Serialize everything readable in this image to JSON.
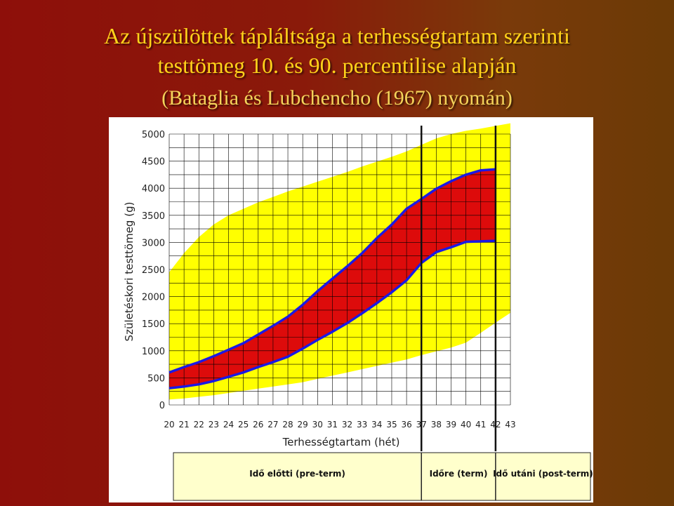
{
  "slide": {
    "title_line1": "Az újszülöttek tápláltsága a terhességtartam szerinti",
    "title_line2": "testtömeg 10. és 90. percentilise alapján",
    "subtitle": "(Bataglia és Lubchencho (1967) nyomán)"
  },
  "colors": {
    "outer_band": "#ffff00",
    "inner_band": "#dd0b0b",
    "percentile_line": "#1a1ae6",
    "grid": "#000000",
    "marker_line": "#111111"
  },
  "chart_data": {
    "type": "area",
    "xlabel": "Terhességtartam (hét)",
    "ylabel": "Születéskori testtömeg (g)",
    "x": [
      20,
      21,
      22,
      23,
      24,
      25,
      26,
      27,
      28,
      29,
      30,
      31,
      32,
      33,
      34,
      35,
      36,
      37,
      38,
      39,
      40,
      41,
      42,
      43
    ],
    "xlim": [
      20,
      43
    ],
    "ylim": [
      0,
      5000
    ],
    "yticks": [
      0,
      500,
      1000,
      1500,
      2000,
      2500,
      3000,
      3500,
      4000,
      4500,
      5000
    ],
    "grid": true,
    "series": [
      {
        "name": "",
        "role": "outer-upper",
        "x": [
          20,
          21,
          22,
          23,
          24,
          25,
          26,
          27,
          28,
          29,
          30,
          31,
          32,
          33,
          34,
          35,
          36,
          37,
          38,
          39,
          40,
          41,
          42,
          43
        ],
        "values": [
          2450,
          2800,
          3100,
          3330,
          3500,
          3620,
          3740,
          3840,
          3940,
          4030,
          4120,
          4210,
          4300,
          4400,
          4490,
          4580,
          4680,
          4800,
          4920,
          5000,
          5060,
          5100,
          5150,
          5200
        ]
      },
      {
        "name": "",
        "role": "p90",
        "x": [
          20,
          21,
          22,
          23,
          24,
          25,
          26,
          27,
          28,
          29,
          30,
          31,
          32,
          33,
          34,
          35,
          36,
          37,
          38,
          39,
          40,
          41,
          42
        ],
        "values": [
          600,
          700,
          790,
          900,
          1020,
          1140,
          1300,
          1460,
          1630,
          1850,
          2100,
          2330,
          2560,
          2800,
          3080,
          3330,
          3620,
          3800,
          3990,
          4130,
          4250,
          4330,
          4350
        ]
      },
      {
        "name": "",
        "role": "p10",
        "x": [
          20,
          21,
          22,
          23,
          24,
          25,
          26,
          27,
          28,
          29,
          30,
          31,
          32,
          33,
          34,
          35,
          36,
          37,
          38,
          39,
          40,
          41,
          42
        ],
        "values": [
          310,
          340,
          380,
          440,
          520,
          600,
          700,
          790,
          890,
          1040,
          1200,
          1350,
          1510,
          1690,
          1880,
          2080,
          2300,
          2620,
          2820,
          2910,
          3010,
          3020,
          3030
        ]
      },
      {
        "name": "",
        "role": "outer-lower",
        "x": [
          20,
          21,
          22,
          23,
          24,
          25,
          26,
          27,
          28,
          29,
          30,
          31,
          32,
          33,
          34,
          35,
          36,
          37,
          38,
          39,
          40,
          41,
          42,
          43
        ],
        "values": [
          100,
          120,
          150,
          180,
          220,
          260,
          300,
          340,
          380,
          420,
          480,
          540,
          600,
          660,
          720,
          780,
          840,
          920,
          990,
          1060,
          1150,
          1330,
          1520,
          1700
        ]
      }
    ],
    "markers": [
      {
        "x": 37
      },
      {
        "x": 42
      }
    ]
  },
  "categories_row": [
    {
      "label": "Idő előtti (pre-term)"
    },
    {
      "label": "Időre (term)"
    },
    {
      "label": "Idő utáni (post-term)"
    }
  ]
}
